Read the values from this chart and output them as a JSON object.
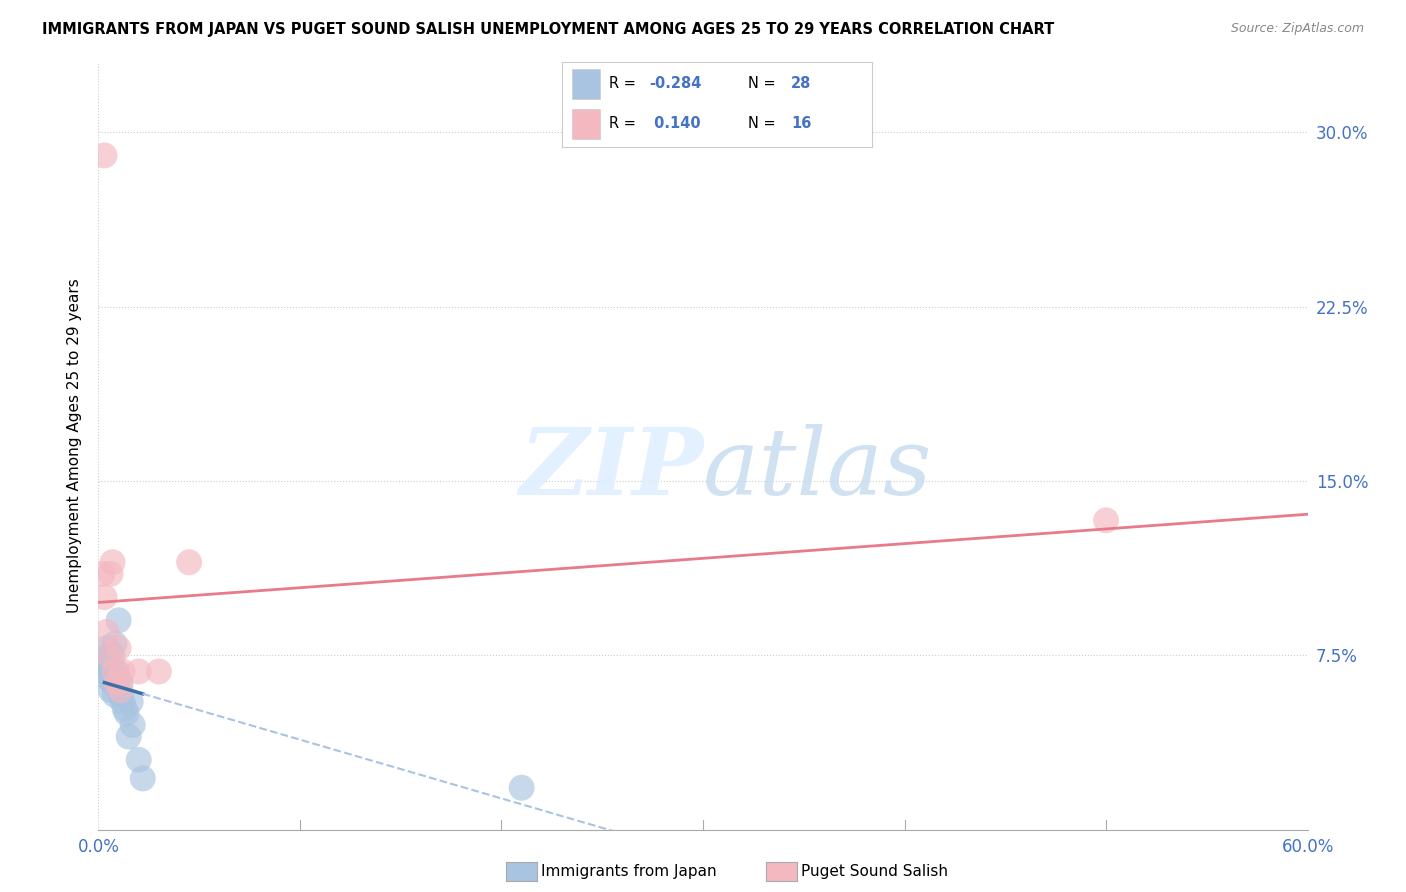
{
  "title": "IMMIGRANTS FROM JAPAN VS PUGET SOUND SALISH UNEMPLOYMENT AMONG AGES 25 TO 29 YEARS CORRELATION CHART",
  "source": "Source: ZipAtlas.com",
  "ylabel": "Unemployment Among Ages 25 to 29 years",
  "xlim": [
    0.0,
    0.6
  ],
  "ylim": [
    0.0,
    0.33
  ],
  "xticks": [
    0.0,
    0.1,
    0.2,
    0.3,
    0.4,
    0.5,
    0.6
  ],
  "yticks": [
    0.0,
    0.075,
    0.15,
    0.225,
    0.3
  ],
  "ytick_labels": [
    "",
    "7.5%",
    "15.0%",
    "22.5%",
    "30.0%"
  ],
  "legend_label1": "Immigrants from Japan",
  "legend_label2": "Puget Sound Salish",
  "R1": "-0.284",
  "N1": "28",
  "R2": "0.140",
  "N2": "16",
  "color_blue": "#a8c4e0",
  "color_pink": "#f4b8c1",
  "line_blue_solid": "#3b6faa",
  "line_blue_dash": "#a8c4e0",
  "line_pink": "#e87a8a",
  "blue_scatter_x": [
    0.003,
    0.004,
    0.004,
    0.005,
    0.005,
    0.005,
    0.006,
    0.006,
    0.007,
    0.007,
    0.008,
    0.008,
    0.008,
    0.009,
    0.009,
    0.01,
    0.01,
    0.011,
    0.011,
    0.012,
    0.013,
    0.014,
    0.015,
    0.016,
    0.017,
    0.02,
    0.022,
    0.21
  ],
  "blue_scatter_y": [
    0.068,
    0.073,
    0.078,
    0.065,
    0.07,
    0.075,
    0.06,
    0.068,
    0.063,
    0.075,
    0.058,
    0.065,
    0.08,
    0.062,
    0.068,
    0.09,
    0.065,
    0.058,
    0.063,
    0.055,
    0.052,
    0.05,
    0.04,
    0.055,
    0.045,
    0.03,
    0.022,
    0.018
  ],
  "pink_scatter_x": [
    0.003,
    0.004,
    0.005,
    0.006,
    0.007,
    0.008,
    0.009,
    0.01,
    0.011,
    0.012,
    0.02,
    0.03,
    0.045,
    0.5,
    0.003,
    0.002
  ],
  "pink_scatter_y": [
    0.1,
    0.085,
    0.075,
    0.11,
    0.115,
    0.068,
    0.063,
    0.078,
    0.06,
    0.068,
    0.068,
    0.068,
    0.115,
    0.133,
    0.29,
    0.11
  ],
  "background_color": "#ffffff",
  "grid_color": "#cccccc"
}
